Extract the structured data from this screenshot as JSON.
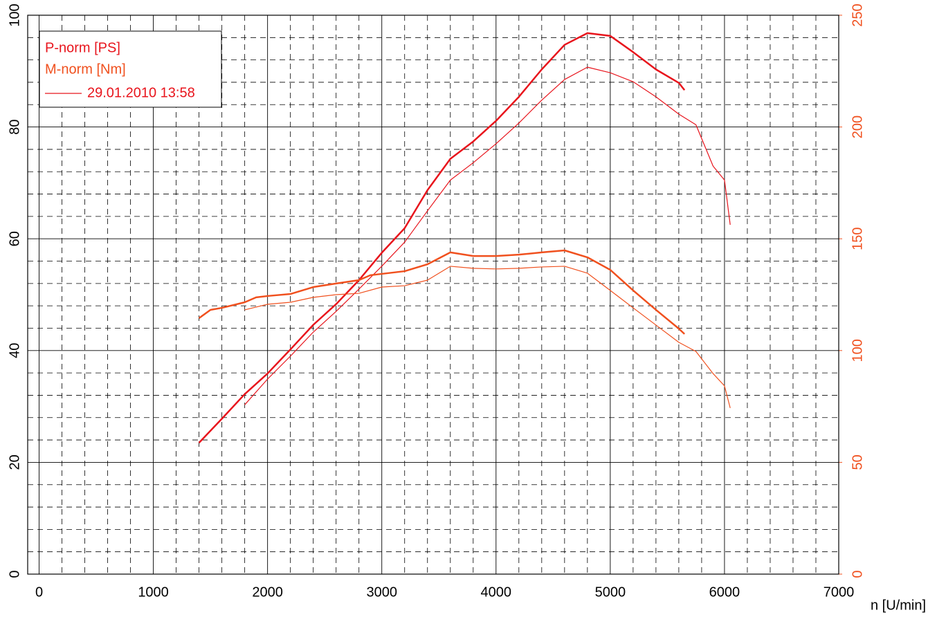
{
  "chart_data": {
    "type": "line",
    "x_label": "n [U/min]",
    "xlim": [
      -100,
      7000
    ],
    "xticks": [
      0,
      1000,
      2000,
      3000,
      4000,
      5000,
      6000,
      7000
    ],
    "ylim": [
      0,
      100
    ],
    "yticks": [
      0,
      20,
      40,
      60,
      80,
      100
    ],
    "y2lim": [
      0,
      250
    ],
    "y2ticks": [
      0,
      50,
      100,
      150,
      200,
      250
    ],
    "grid": true,
    "legend": {
      "labels": [
        {
          "text": "P-norm [PS]",
          "color": "#e8141c"
        },
        {
          "text": "M-norm [Nm]",
          "color": "#f0501e"
        }
      ],
      "run": "29.01.2010 13:58",
      "run_color": "#e8141c"
    },
    "series": [
      {
        "color": "#e8141c",
        "width": 2.5,
        "x": [
          1400,
          1600,
          1800,
          2000,
          2200,
          2400,
          2600,
          2800,
          3000,
          3200,
          3400,
          3600,
          3800,
          4000,
          4200,
          4400,
          4600,
          4800,
          5000,
          5200,
          5400,
          5600,
          5650
        ],
        "values": [
          23.5,
          27.8,
          32.2,
          35.9,
          40.2,
          44.6,
          48.3,
          52.6,
          57.5,
          61.9,
          68.7,
          74.3,
          77.4,
          81.1,
          85.4,
          90.3,
          94.7,
          96.8,
          96.3,
          93.4,
          90.3,
          87.9,
          86.6
        ]
      },
      {
        "color": "#e8141c",
        "width": 1.2,
        "x": [
          1800,
          2000,
          2200,
          2400,
          2600,
          2800,
          3000,
          3200,
          3400,
          3600,
          3800,
          4000,
          4200,
          4400,
          4600,
          4800,
          5000,
          5200,
          5400,
          5600,
          5750,
          5900,
          6000,
          6050
        ],
        "values": [
          30.3,
          34.9,
          39.0,
          43.3,
          47.0,
          51.0,
          55.1,
          59.4,
          65.0,
          70.5,
          73.6,
          77.0,
          80.7,
          84.8,
          88.5,
          90.7,
          89.7,
          88.1,
          85.4,
          82.3,
          80.4,
          73.0,
          70.5,
          62.5
        ]
      },
      {
        "color": "#f0501e",
        "width": 2.5,
        "axis": "y2",
        "x": [
          1400,
          1500,
          1600,
          1800,
          1900,
          2000,
          2200,
          2400,
          2600,
          2800,
          2900,
          3000,
          3200,
          3400,
          3600,
          3800,
          4000,
          4200,
          4400,
          4600,
          4800,
          5000,
          5200,
          5400,
          5600,
          5650
        ],
        "values": [
          114.5,
          118.2,
          119.1,
          121.6,
          123.8,
          124.4,
          125.3,
          128.4,
          130.0,
          131.5,
          133.7,
          134.3,
          135.5,
          138.6,
          143.9,
          142.3,
          142.3,
          142.9,
          143.9,
          144.8,
          141.7,
          136.1,
          126.9,
          118.2,
          109.8,
          107.4
        ]
      },
      {
        "color": "#f0501e",
        "width": 1.2,
        "axis": "y2",
        "x": [
          1800,
          2000,
          2200,
          2400,
          2600,
          2800,
          3000,
          3200,
          3400,
          3600,
          3800,
          4000,
          4200,
          4400,
          4600,
          4800,
          5000,
          5200,
          5400,
          5600,
          5750,
          5900,
          6000,
          6050
        ],
        "values": [
          118.2,
          120.7,
          121.6,
          123.8,
          125.0,
          125.6,
          128.4,
          129.0,
          131.5,
          137.7,
          136.8,
          136.5,
          136.8,
          137.4,
          137.7,
          134.6,
          126.9,
          119.1,
          111.4,
          103.7,
          99.6,
          89.7,
          84.2,
          74.3
        ]
      }
    ]
  }
}
